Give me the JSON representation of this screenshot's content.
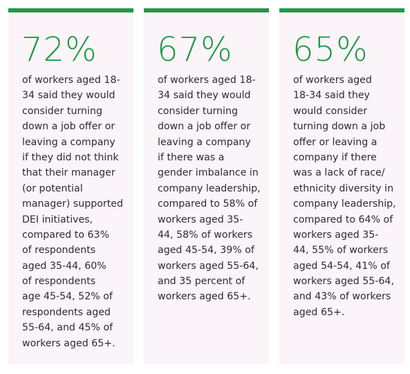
{
  "cards": [
    {
      "stat": "72%",
      "lines": [
        "of workers aged 18-",
        "34 said they would",
        "consider turning",
        "down a job offer or",
        "leaving a company",
        "if they did not think",
        "that their manager",
        "(or potential",
        "manager) supported",
        "DEI initiatives,",
        "compared to 63%",
        "of respondents",
        "aged 35-44, 60%",
        "of respondents",
        "age 45-54, 52% of",
        "respondents aged",
        "55-64, and 45% of",
        "workers aged 65+."
      ]
    },
    {
      "stat": "67%",
      "lines": [
        "of workers aged 18-",
        "34 said they would",
        "consider turning",
        "down a job offer or",
        "leaving a company",
        "if there was a",
        "gender imbalance in",
        "company leadership,",
        "compared to 58% of",
        "workers aged 35-",
        "44, 58% of workers",
        "aged 45-54, 39% of",
        "workers aged 55-64,",
        "and 35 percent of",
        "workers aged 65+."
      ]
    },
    {
      "stat": "65%",
      "lines": [
        "of workers aged",
        "18-34 said they",
        "would consider",
        "turning down a job",
        "offer or leaving a",
        "company if there",
        "was a lack of race/",
        "ethnicity diversity in",
        "company leadership,",
        "compared to 64% of",
        "workers aged 35-",
        "44, 55% of workers",
        "aged 54-54, 41% of",
        "workers aged 55-64,",
        "and 43% of workers",
        "aged 65+."
      ]
    }
  ]
}
